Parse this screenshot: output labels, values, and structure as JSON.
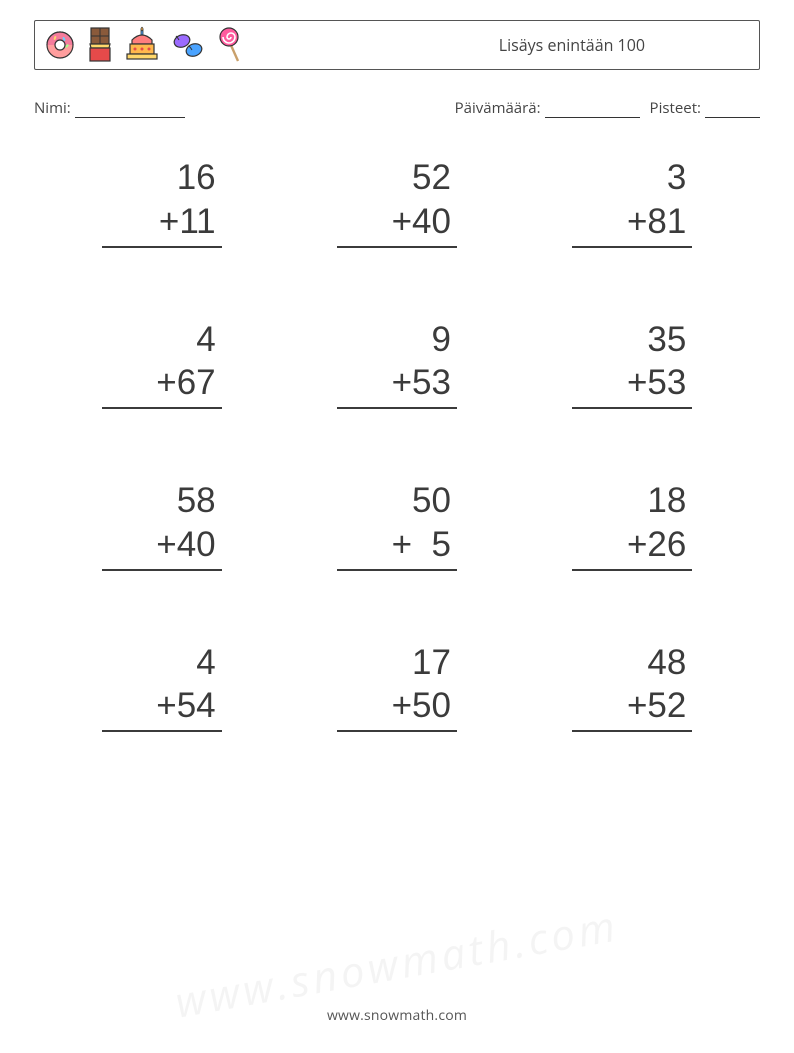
{
  "header": {
    "title": "Lisäys enintään 100",
    "icons": [
      "donut",
      "chocolate",
      "cake",
      "candies",
      "lollipop"
    ]
  },
  "info": {
    "name_label": "Nimi:",
    "date_label": "Päivämäärä:",
    "score_label": "Pisteet:"
  },
  "worksheet": {
    "operator": "+",
    "font_size": 35,
    "text_color": "#3b3b3b",
    "underline_color": "#3b3b3b",
    "columns": 3,
    "rows": 4,
    "problems": [
      {
        "a": 16,
        "b": 11
      },
      {
        "a": 52,
        "b": 40
      },
      {
        "a": 3,
        "b": 81
      },
      {
        "a": 4,
        "b": 67
      },
      {
        "a": 9,
        "b": 53
      },
      {
        "a": 35,
        "b": 53
      },
      {
        "a": 58,
        "b": 40
      },
      {
        "a": 50,
        "b": 5
      },
      {
        "a": 18,
        "b": 26
      },
      {
        "a": 4,
        "b": 54
      },
      {
        "a": 17,
        "b": 50
      },
      {
        "a": 48,
        "b": 52
      }
    ]
  },
  "footer": {
    "text": "www.snowmath.com"
  },
  "icon_colors": {
    "donut": {
      "base": "#ff9e9e",
      "top": "#f47c9c",
      "sprinkle": "#ffd86b"
    },
    "chocolate": {
      "bar": "#8a5a3b",
      "wrap": "#e64a4a",
      "foil": "#ffd86b"
    },
    "cake": {
      "base": "#ffb84d",
      "frost": "#ff7e7e",
      "candle": "#4aa3ff"
    },
    "candies": {
      "c1": "#9b6bff",
      "c2": "#4aa3ff"
    },
    "lollipop": {
      "swirl": "#ff5c9e",
      "stick": "#c9a06b"
    }
  }
}
